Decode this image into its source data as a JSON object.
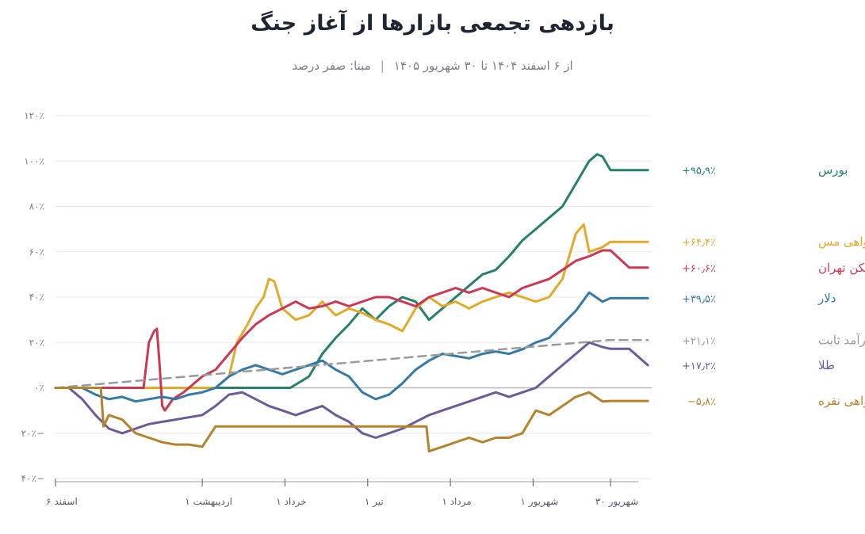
{
  "header": {
    "title": "بازدهی تجمعی بازارها از آغاز جنگ",
    "subtitle_range": "از ۶ اسفند ۱۴۰۴ تا ۳۰ شهریور ۱۴۰۵",
    "subtitle_sep": "|",
    "subtitle_base": "مبنا: صفر درصد"
  },
  "chart_data": {
    "type": "line",
    "title": "بازدهی تجمعی بازارها از آغاز جنگ",
    "ylim": [
      -40,
      120
    ],
    "y_ticks": [
      {
        "v": 120,
        "label": "۱۲۰٪"
      },
      {
        "v": 100,
        "label": "۱۰۰٪"
      },
      {
        "v": 80,
        "label": "۸۰٪"
      },
      {
        "v": 60,
        "label": "۶۰٪"
      },
      {
        "v": 40,
        "label": "۴۰٪"
      },
      {
        "v": 20,
        "label": "۲۰٪"
      },
      {
        "v": 0,
        "label": "۰٪"
      },
      {
        "v": -20,
        "label": "۲۰٪−"
      },
      {
        "v": -40,
        "label": "۴۰٪−"
      }
    ],
    "x_ticks": [
      {
        "d": 0,
        "label": "۶ اسفند"
      },
      {
        "d": 55,
        "label": "۱ اردیبهشت"
      },
      {
        "d": 86,
        "label": "۱ خرداد"
      },
      {
        "d": 117,
        "label": "۱ تیر"
      },
      {
        "d": 148,
        "label": "۱ مرداد"
      },
      {
        "d": 179,
        "label": "۱ شهریور"
      },
      {
        "d": 208,
        "label": "۳۰ شهریور"
      }
    ],
    "grid": true,
    "series": [
      {
        "name": "بورس",
        "final": "+۹۵٫۹٪",
        "color": "#27806a",
        "end_y": 96,
        "x": [
          0,
          10,
          20,
          30,
          40,
          50,
          60,
          68,
          75,
          80,
          88,
          95,
          100,
          105,
          110,
          115,
          120,
          125,
          130,
          135,
          140,
          145,
          150,
          155,
          160,
          165,
          170,
          175,
          180,
          185,
          190,
          195,
          200,
          203,
          205,
          208,
          222
        ],
        "y": [
          0,
          0,
          0,
          0,
          0,
          0,
          0,
          0,
          0,
          0,
          0,
          5,
          15,
          22,
          28,
          35,
          30,
          36,
          40,
          38,
          30,
          35,
          40,
          45,
          50,
          52,
          58,
          65,
          70,
          75,
          80,
          90,
          100,
          103,
          102,
          96,
          96
        ]
      },
      {
        "name": "گواهی مس",
        "final": "+۶۴٫۴٪",
        "color": "#e3a92b",
        "end_y": 64.4,
        "x": [
          0,
          10,
          17,
          18,
          30,
          40,
          50,
          55,
          60,
          65,
          68,
          72,
          75,
          78,
          80,
          82,
          85,
          90,
          95,
          100,
          105,
          110,
          115,
          120,
          125,
          130,
          135,
          140,
          145,
          150,
          155,
          160,
          165,
          170,
          175,
          180,
          185,
          190,
          195,
          198,
          200,
          205,
          208,
          222
        ],
        "y": [
          0,
          0,
          0,
          0,
          0,
          0,
          0,
          0,
          0,
          5,
          20,
          28,
          35,
          40,
          48,
          47,
          35,
          30,
          32,
          38,
          32,
          35,
          33,
          30,
          28,
          25,
          35,
          40,
          36,
          38,
          35,
          38,
          40,
          42,
          40,
          38,
          40,
          48,
          68,
          72,
          60,
          62,
          64.4,
          64.4
        ]
      },
      {
        "name": "مسکن تهران",
        "final": "+۶۰٫۶٪",
        "color": "#cc3853",
        "end_y": 53,
        "x": [
          0,
          10,
          20,
          30,
          33,
          35,
          37,
          38,
          39,
          40,
          41,
          44,
          48,
          50,
          55,
          60,
          65,
          70,
          75,
          80,
          85,
          90,
          95,
          100,
          105,
          110,
          115,
          120,
          125,
          130,
          135,
          140,
          145,
          150,
          155,
          160,
          165,
          170,
          175,
          180,
          185,
          190,
          195,
          200,
          205,
          208,
          215,
          222
        ],
        "y": [
          0,
          0,
          0,
          0,
          0,
          20,
          25,
          26,
          10,
          -8,
          -10,
          -5,
          -2,
          0,
          5,
          8,
          15,
          22,
          28,
          32,
          35,
          38,
          35,
          36,
          38,
          36,
          38,
          40,
          40,
          38,
          36,
          40,
          42,
          44,
          42,
          44,
          42,
          40,
          44,
          46,
          48,
          52,
          56,
          58,
          60.6,
          60.6,
          53,
          53
        ]
      },
      {
        "name": "دلار",
        "final": "+۳۹٫۵٪",
        "color": "#3579a8",
        "end_y": 39.5,
        "x": [
          0,
          5,
          10,
          15,
          20,
          25,
          30,
          35,
          40,
          45,
          50,
          55,
          60,
          65,
          70,
          75,
          80,
          85,
          90,
          95,
          100,
          105,
          110,
          115,
          120,
          125,
          130,
          135,
          140,
          145,
          150,
          155,
          160,
          165,
          170,
          175,
          180,
          185,
          190,
          195,
          200,
          205,
          208,
          222
        ],
        "y": [
          0,
          0,
          0,
          -3,
          -5,
          -4,
          -6,
          -5,
          -4,
          -5,
          -3,
          -2,
          0,
          5,
          8,
          10,
          8,
          6,
          8,
          10,
          12,
          8,
          5,
          -2,
          -5,
          -3,
          2,
          8,
          12,
          15,
          14,
          13,
          15,
          16,
          15,
          17,
          20,
          22,
          28,
          34,
          42,
          38,
          39.5,
          39.5
        ]
      },
      {
        "name": "درآمد ثابت",
        "final": "+۲۱٫۱٪",
        "color": "#9a9a9a",
        "end_y": 21,
        "dashed": true,
        "x": [
          0,
          208,
          222
        ],
        "y": [
          0,
          21.1,
          21.1
        ]
      },
      {
        "name": "طلا",
        "final": "+۱۷٫۲٪",
        "color": "#6c5a9a",
        "end_y": 10,
        "x": [
          0,
          5,
          10,
          15,
          20,
          25,
          30,
          35,
          40,
          45,
          50,
          55,
          60,
          65,
          70,
          75,
          80,
          85,
          90,
          95,
          100,
          105,
          110,
          115,
          120,
          125,
          130,
          135,
          140,
          145,
          150,
          155,
          160,
          165,
          170,
          175,
          180,
          185,
          190,
          195,
          200,
          205,
          208,
          215,
          222
        ],
        "y": [
          0,
          0,
          -5,
          -12,
          -18,
          -20,
          -18,
          -16,
          -15,
          -14,
          -13,
          -12,
          -8,
          -3,
          -2,
          -5,
          -8,
          -10,
          -12,
          -10,
          -8,
          -12,
          -15,
          -20,
          -22,
          -20,
          -18,
          -15,
          -12,
          -10,
          -8,
          -6,
          -4,
          -2,
          -4,
          -2,
          0,
          5,
          10,
          15,
          20,
          18,
          17.2,
          17.2,
          10
        ]
      },
      {
        "name": "گواهی نقره",
        "final": "−۵٫۸٪",
        "color": "#b5822d",
        "end_y": -5.8,
        "x": [
          0,
          10,
          17,
          18,
          20,
          25,
          30,
          35,
          40,
          45,
          50,
          55,
          60,
          65,
          70,
          75,
          80,
          85,
          90,
          95,
          100,
          105,
          110,
          115,
          120,
          125,
          130,
          135,
          139,
          140,
          145,
          150,
          155,
          160,
          165,
          170,
          175,
          180,
          185,
          190,
          195,
          200,
          205,
          208,
          222
        ],
        "y": [
          0,
          0,
          0,
          -17,
          -12,
          -14,
          -20,
          -22,
          -24,
          -25,
          -25,
          -26,
          -17,
          -17,
          -17,
          -17,
          -17,
          -17,
          -17,
          -17,
          -17,
          -17,
          -17,
          -17,
          -17,
          -17,
          -17,
          -17,
          -17,
          -28,
          -26,
          -24,
          -22,
          -24,
          -22,
          -22,
          -20,
          -10,
          -12,
          -8,
          -4,
          -2,
          -6,
          -5.8,
          -5.8
        ]
      }
    ]
  }
}
